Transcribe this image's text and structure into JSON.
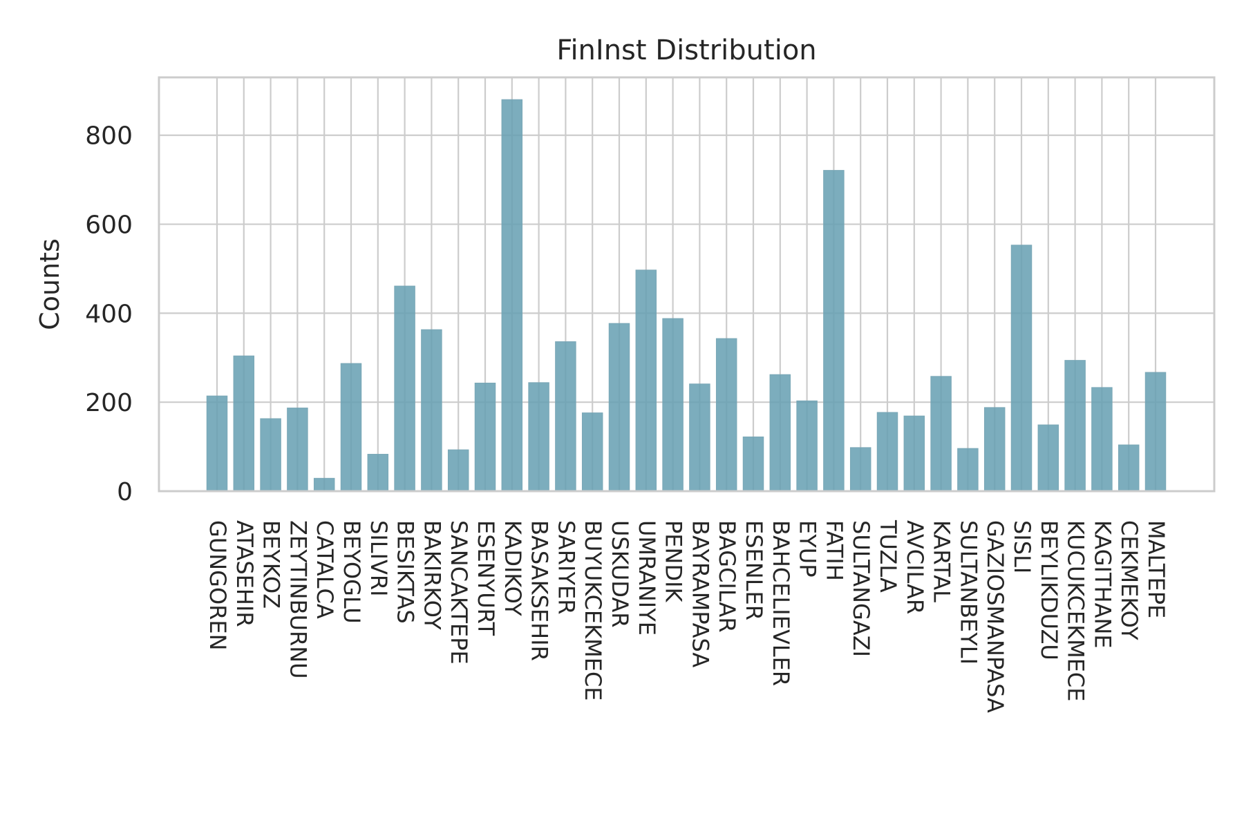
{
  "chart_data": {
    "type": "bar",
    "title": "FinInst Distribution",
    "xlabel": "",
    "ylabel": "Counts",
    "ylim": [
      0,
      930
    ],
    "yticks": [
      0,
      200,
      400,
      600,
      800
    ],
    "grid": true,
    "legend": "none",
    "bar_color": "#659fb2",
    "categories": [
      "GUNGOREN",
      "ATASEHIR",
      "BEYKOZ",
      "ZEYTINBURNU",
      "CATALCA",
      "BEYOGLU",
      "SILIVRI",
      "BESIKTAS",
      "BAKIRKOY",
      "SANCAKTEPE",
      "ESENYURT",
      "KADIKOY",
      "BASAKSEHIR",
      "SARIYER",
      "BUYUKCEKMECE",
      "USKUDAR",
      "UMRANIYE",
      "PENDIK",
      "BAYRAMPASA",
      "BAGCILAR",
      "ESENLER",
      "BAHCELIEVLER",
      "EYUP",
      "FATIH",
      "SULTANGAZI",
      "TUZLA",
      "AVCILAR",
      "KARTAL",
      "SULTANBEYLI",
      "GAZIOSMANPASA",
      "SISLI",
      "BEYLIKDUZU",
      "KUCUKCEKMECE",
      "KAGITHANE",
      "CEKMEKOY",
      "MALTEPE"
    ],
    "values": [
      214,
      304,
      163,
      187,
      29,
      287,
      83,
      461,
      363,
      93,
      243,
      880,
      244,
      336,
      176,
      377,
      497,
      388,
      241,
      343,
      122,
      262,
      203,
      721,
      98,
      177,
      169,
      258,
      96,
      188,
      553,
      149,
      294,
      233,
      104,
      267
    ]
  }
}
